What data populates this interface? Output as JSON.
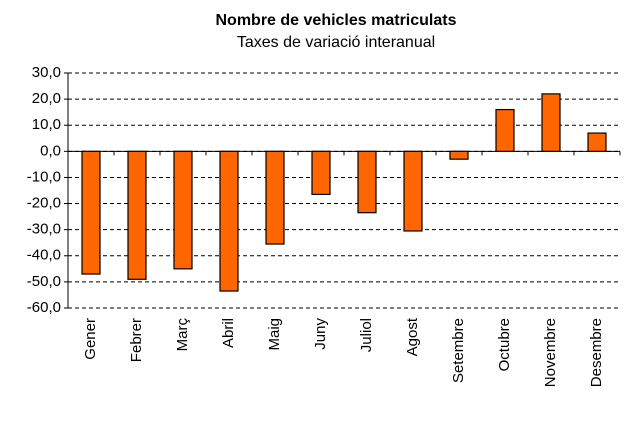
{
  "chart_data": {
    "type": "bar",
    "title": "Nombre de vehicles matriculats",
    "subtitle": "Taxes de variació interanual",
    "categories": [
      "Gener",
      "Febrer",
      "Març",
      "Abril",
      "Maig",
      "Juny",
      "Juliol",
      "Agost",
      "Setembre",
      "Octubre",
      "Novembre",
      "Desembre"
    ],
    "values": [
      -47,
      -49,
      -45,
      -53.5,
      -35.5,
      -16.5,
      -23.5,
      -30.5,
      -3,
      16,
      22,
      7
    ],
    "color": "#ff6600",
    "ylim": [
      -60,
      30
    ],
    "yticks": [
      {
        "value": -60,
        "label": "-60,0"
      },
      {
        "value": -50,
        "label": "-50,0"
      },
      {
        "value": -40,
        "label": "-40,0"
      },
      {
        "value": -30,
        "label": "-30,0"
      },
      {
        "value": -20,
        "label": "-20,0"
      },
      {
        "value": -10,
        "label": "-10,0"
      },
      {
        "value": 0,
        "label": "0,0"
      },
      {
        "value": 10,
        "label": "10,0"
      },
      {
        "value": 20,
        "label": "20,0"
      },
      {
        "value": 30,
        "label": "30,0"
      }
    ],
    "grid": true
  }
}
